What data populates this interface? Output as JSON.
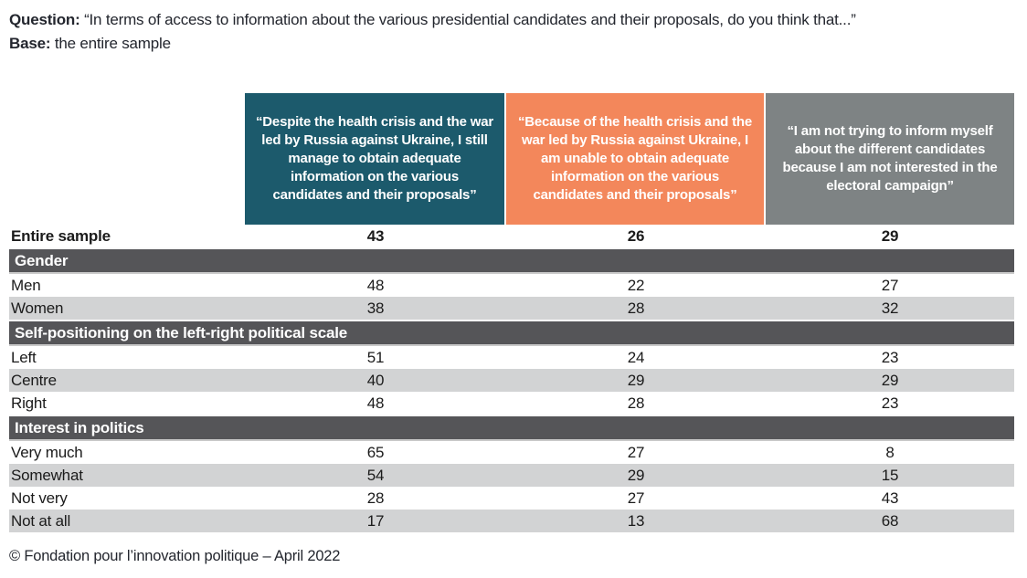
{
  "page": {
    "question_label": "Question:",
    "question_text": "“In terms of access to information about the various presidential candidates and their proposals, do you think that...”",
    "base_label": "Base:",
    "base_text": "the entire sample",
    "footer": "© Fondation pour l’innovation politique – April 2022"
  },
  "colors": {
    "header_teal": "#1c5a6c",
    "header_orange": "#f3875b",
    "header_gray": "#7e8384",
    "section_band": "#555558",
    "row_alt": "#d2d3d4"
  },
  "table": {
    "columns": [
      {
        "quote": "“Despite the health crisis and the war led by Russia against Ukraine, I still manage to obtain adequate information on the various candidates and their proposals”",
        "color": "#1c5a6c"
      },
      {
        "quote": "“Because of the health crisis and the war led by Russia against Ukraine, I am unable to obtain adequate information on the various candidates and their proposals”",
        "color": "#f3875b"
      },
      {
        "quote": "“I am not trying to inform myself about the different candidates because I am not interested in the electoral campaign”",
        "color": "#7e8384"
      }
    ],
    "rows": [
      {
        "type": "total",
        "label": "Entire sample",
        "values": [
          "43",
          "26",
          "29"
        ]
      },
      {
        "type": "section",
        "label": "Gender"
      },
      {
        "type": "data",
        "label": "Men",
        "values": [
          "48",
          "22",
          "27"
        ]
      },
      {
        "type": "alt",
        "label": "Women",
        "values": [
          "38",
          "28",
          "32"
        ]
      },
      {
        "type": "section",
        "label": "Self-positioning on the left-right political scale"
      },
      {
        "type": "data",
        "label": "Left",
        "values": [
          "51",
          "24",
          "23"
        ]
      },
      {
        "type": "alt",
        "label": "Centre",
        "values": [
          "40",
          "29",
          "29"
        ]
      },
      {
        "type": "data",
        "label": "Right",
        "values": [
          "48",
          "28",
          "23"
        ]
      },
      {
        "type": "section",
        "label": "Interest in politics"
      },
      {
        "type": "data",
        "label": "Very much",
        "values": [
          "65",
          "27",
          "8"
        ]
      },
      {
        "type": "alt",
        "label": "Somewhat",
        "values": [
          "54",
          "29",
          "15"
        ]
      },
      {
        "type": "data",
        "label": "Not very",
        "values": [
          "28",
          "27",
          "43"
        ]
      },
      {
        "type": "alt",
        "label": "Not at all",
        "values": [
          "17",
          "13",
          "68"
        ]
      }
    ]
  },
  "chart_data": {
    "type": "table",
    "title": "Question: “In terms of access to information about the various presidential candidates and their proposals, do you think that...”",
    "base": "the entire sample",
    "source": "© Fondation pour l’innovation politique – April 2022",
    "columns": [
      "“Despite the health crisis and the war led by Russia against Ukraine, I still manage to obtain adequate information on the various candidates and their proposals”",
      "“Because of the health crisis and the war led by Russia against Ukraine, I am unable to obtain adequate information on the various candidates and their proposals”",
      "“I am not trying to inform myself about the different candidates because I am not interested in the electoral campaign”"
    ],
    "rows": [
      {
        "group": null,
        "label": "Entire sample",
        "values": [
          43,
          26,
          29
        ]
      },
      {
        "group": "Gender",
        "label": "Men",
        "values": [
          48,
          22,
          27
        ]
      },
      {
        "group": "Gender",
        "label": "Women",
        "values": [
          38,
          28,
          32
        ]
      },
      {
        "group": "Self-positioning on the left-right political scale",
        "label": "Left",
        "values": [
          51,
          24,
          23
        ]
      },
      {
        "group": "Self-positioning on the left-right political scale",
        "label": "Centre",
        "values": [
          40,
          29,
          29
        ]
      },
      {
        "group": "Self-positioning on the left-right political scale",
        "label": "Right",
        "values": [
          48,
          28,
          23
        ]
      },
      {
        "group": "Interest in politics",
        "label": "Very much",
        "values": [
          65,
          27,
          8
        ]
      },
      {
        "group": "Interest in politics",
        "label": "Somewhat",
        "values": [
          54,
          29,
          15
        ]
      },
      {
        "group": "Interest in politics",
        "label": "Not very",
        "values": [
          28,
          27,
          43
        ]
      },
      {
        "group": "Interest in politics",
        "label": "Not at all",
        "values": [
          17,
          13,
          68
        ]
      }
    ]
  }
}
